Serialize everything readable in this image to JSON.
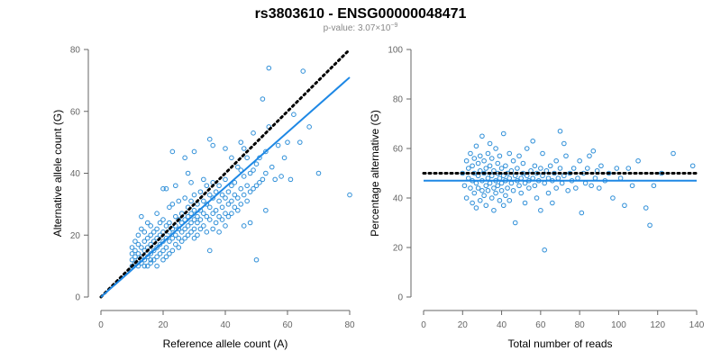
{
  "header": {
    "title": "rs3803610 - ENSG00000048471",
    "pvalue_prefix": "p-value: 3.07×10",
    "pvalue_exponent": "−9"
  },
  "colors": {
    "points": "#2f8fd8",
    "fit_line": "#1e88e5",
    "reference_line": "#000000"
  },
  "chart_data": [
    {
      "type": "scatter",
      "xlabel": "Reference allele count (A)",
      "ylabel": "Alternative allele count (G)",
      "xlim": [
        0,
        80
      ],
      "ylim": [
        0,
        80
      ],
      "xticks": [
        0,
        20,
        40,
        60,
        80
      ],
      "yticks": [
        0,
        20,
        40,
        60,
        80
      ],
      "grid": false,
      "reference_line": {
        "style": "dotted",
        "points": [
          [
            0,
            0
          ],
          [
            80,
            80
          ]
        ]
      },
      "fit_line": {
        "style": "solid",
        "points": [
          [
            0,
            0
          ],
          [
            80,
            71
          ]
        ]
      },
      "points": [
        [
          10,
          10
        ],
        [
          10,
          12
        ],
        [
          10,
          14
        ],
        [
          10,
          16
        ],
        [
          11,
          11
        ],
        [
          11,
          13
        ],
        [
          11,
          15
        ],
        [
          11,
          18
        ],
        [
          12,
          10
        ],
        [
          12,
          12
        ],
        [
          12,
          14
        ],
        [
          12,
          17
        ],
        [
          12,
          20
        ],
        [
          13,
          11
        ],
        [
          13,
          13
        ],
        [
          13,
          16
        ],
        [
          13,
          22
        ],
        [
          13,
          26
        ],
        [
          14,
          10
        ],
        [
          14,
          12
        ],
        [
          14,
          15
        ],
        [
          14,
          18
        ],
        [
          14,
          21
        ],
        [
          15,
          10
        ],
        [
          15,
          13
        ],
        [
          15,
          16
        ],
        [
          15,
          19
        ],
        [
          15,
          24
        ],
        [
          16,
          11
        ],
        [
          16,
          12
        ],
        [
          16,
          14
        ],
        [
          16,
          17
        ],
        [
          16,
          20
        ],
        [
          16,
          23
        ],
        [
          17,
          12
        ],
        [
          17,
          15
        ],
        [
          17,
          18
        ],
        [
          17,
          21
        ],
        [
          18,
          10
        ],
        [
          18,
          13
        ],
        [
          18,
          16
        ],
        [
          18,
          19
        ],
        [
          18,
          22
        ],
        [
          18,
          27
        ],
        [
          19,
          14
        ],
        [
          19,
          17
        ],
        [
          19,
          20
        ],
        [
          19,
          24
        ],
        [
          20,
          12
        ],
        [
          20,
          15
        ],
        [
          20,
          18
        ],
        [
          20,
          21
        ],
        [
          20,
          25
        ],
        [
          20,
          35
        ],
        [
          21,
          13
        ],
        [
          21,
          16
        ],
        [
          21,
          19
        ],
        [
          21,
          23
        ],
        [
          21,
          35
        ],
        [
          22,
          14
        ],
        [
          22,
          18
        ],
        [
          22,
          21
        ],
        [
          22,
          24
        ],
        [
          22,
          29
        ],
        [
          23,
          15
        ],
        [
          23,
          19
        ],
        [
          23,
          22
        ],
        [
          23,
          30
        ],
        [
          23,
          47
        ],
        [
          24,
          17
        ],
        [
          24,
          20
        ],
        [
          24,
          23
        ],
        [
          24,
          26
        ],
        [
          24,
          36
        ],
        [
          25,
          16
        ],
        [
          25,
          19
        ],
        [
          25,
          22
        ],
        [
          25,
          25
        ],
        [
          25,
          31
        ],
        [
          26,
          18
        ],
        [
          26,
          21
        ],
        [
          26,
          24
        ],
        [
          26,
          27
        ],
        [
          27,
          19
        ],
        [
          27,
          22
        ],
        [
          27,
          25
        ],
        [
          27,
          32
        ],
        [
          27,
          45
        ],
        [
          28,
          20
        ],
        [
          28,
          23
        ],
        [
          28,
          26
        ],
        [
          28,
          29
        ],
        [
          28,
          40
        ],
        [
          29,
          21
        ],
        [
          29,
          24
        ],
        [
          29,
          27
        ],
        [
          29,
          31
        ],
        [
          29,
          37
        ],
        [
          30,
          19
        ],
        [
          30,
          22
        ],
        [
          30,
          25
        ],
        [
          30,
          28
        ],
        [
          30,
          33
        ],
        [
          30,
          47
        ],
        [
          31,
          20
        ],
        [
          31,
          24
        ],
        [
          31,
          26
        ],
        [
          31,
          30
        ],
        [
          32,
          22
        ],
        [
          32,
          25
        ],
        [
          32,
          28
        ],
        [
          32,
          34
        ],
        [
          33,
          23
        ],
        [
          33,
          27
        ],
        [
          33,
          31
        ],
        [
          33,
          38
        ],
        [
          34,
          21
        ],
        [
          34,
          26
        ],
        [
          34,
          30
        ],
        [
          34,
          36
        ],
        [
          35,
          15
        ],
        [
          35,
          25
        ],
        [
          35,
          29
        ],
        [
          35,
          33
        ],
        [
          35,
          51
        ],
        [
          36,
          22
        ],
        [
          36,
          27
        ],
        [
          36,
          32
        ],
        [
          36,
          37
        ],
        [
          36,
          49
        ],
        [
          37,
          24
        ],
        [
          37,
          28
        ],
        [
          37,
          34
        ],
        [
          38,
          21
        ],
        [
          38,
          26
        ],
        [
          38,
          31
        ],
        [
          38,
          36
        ],
        [
          39,
          25
        ],
        [
          39,
          29
        ],
        [
          39,
          33
        ],
        [
          40,
          23
        ],
        [
          40,
          27
        ],
        [
          40,
          32
        ],
        [
          40,
          38
        ],
        [
          40,
          48
        ],
        [
          41,
          26
        ],
        [
          41,
          30
        ],
        [
          41,
          34
        ],
        [
          42,
          27
        ],
        [
          42,
          31
        ],
        [
          42,
          36
        ],
        [
          42,
          45
        ],
        [
          43,
          29
        ],
        [
          43,
          33
        ],
        [
          43,
          37
        ],
        [
          44,
          28
        ],
        [
          44,
          32
        ],
        [
          44,
          42
        ],
        [
          45,
          30
        ],
        [
          45,
          35
        ],
        [
          45,
          41
        ],
        [
          45,
          50
        ],
        [
          46,
          23
        ],
        [
          46,
          33
        ],
        [
          46,
          39
        ],
        [
          46,
          48
        ],
        [
          47,
          31
        ],
        [
          47,
          36
        ],
        [
          47,
          45
        ],
        [
          48,
          24
        ],
        [
          48,
          34
        ],
        [
          48,
          40
        ],
        [
          49,
          35
        ],
        [
          49,
          41
        ],
        [
          49,
          53
        ],
        [
          50,
          12
        ],
        [
          50,
          36
        ],
        [
          50,
          43
        ],
        [
          51,
          37
        ],
        [
          51,
          45
        ],
        [
          52,
          38
        ],
        [
          52,
          64
        ],
        [
          53,
          28
        ],
        [
          53,
          40
        ],
        [
          53,
          47
        ],
        [
          54,
          55
        ],
        [
          54,
          74
        ],
        [
          55,
          42
        ],
        [
          56,
          38
        ],
        [
          57,
          49
        ],
        [
          58,
          39
        ],
        [
          59,
          45
        ],
        [
          60,
          50
        ],
        [
          61,
          38
        ],
        [
          62,
          59
        ],
        [
          64,
          50
        ],
        [
          65,
          73
        ],
        [
          67,
          55
        ],
        [
          70,
          40
        ],
        [
          80,
          33
        ]
      ]
    },
    {
      "type": "scatter",
      "xlabel": "Total number of reads",
      "ylabel": "Percentage alternative (G)",
      "xlim": [
        0,
        140
      ],
      "ylim": [
        0,
        100
      ],
      "xticks": [
        0,
        20,
        40,
        60,
        80,
        100,
        120,
        140
      ],
      "yticks": [
        0,
        20,
        40,
        60,
        80,
        100
      ],
      "grid": false,
      "reference_line": {
        "style": "dotted",
        "points": [
          [
            0,
            50
          ],
          [
            140,
            50
          ]
        ]
      },
      "fit_line": {
        "style": "solid",
        "points": [
          [
            0,
            47
          ],
          [
            140,
            47
          ]
        ]
      },
      "points": [
        [
          20,
          50
        ],
        [
          21,
          45
        ],
        [
          22,
          55
        ],
        [
          22,
          40
        ],
        [
          23,
          48
        ],
        [
          23,
          52
        ],
        [
          24,
          44
        ],
        [
          24,
          58
        ],
        [
          25,
          47
        ],
        [
          25,
          53
        ],
        [
          25,
          38
        ],
        [
          26,
          50
        ],
        [
          26,
          42
        ],
        [
          26,
          56
        ],
        [
          27,
          46
        ],
        [
          27,
          61
        ],
        [
          27,
          36
        ],
        [
          28,
          49
        ],
        [
          28,
          44
        ],
        [
          28,
          54
        ],
        [
          29,
          51
        ],
        [
          29,
          39
        ],
        [
          29,
          57
        ],
        [
          30,
          47
        ],
        [
          30,
          43
        ],
        [
          30,
          65
        ],
        [
          31,
          50
        ],
        [
          31,
          55
        ],
        [
          31,
          41
        ],
        [
          32,
          45
        ],
        [
          32,
          52
        ],
        [
          32,
          37
        ],
        [
          33,
          48
        ],
        [
          33,
          58
        ],
        [
          33,
          43
        ],
        [
          34,
          46
        ],
        [
          34,
          53
        ],
        [
          34,
          62
        ],
        [
          35,
          49
        ],
        [
          35,
          40
        ],
        [
          35,
          56
        ],
        [
          36,
          44
        ],
        [
          36,
          51
        ],
        [
          36,
          35
        ],
        [
          37,
          47
        ],
        [
          37,
          60
        ],
        [
          37,
          42
        ],
        [
          38,
          50
        ],
        [
          38,
          45
        ],
        [
          38,
          54
        ],
        [
          39,
          48
        ],
        [
          39,
          39
        ],
        [
          39,
          57
        ],
        [
          40,
          46
        ],
        [
          40,
          52
        ],
        [
          40,
          43
        ],
        [
          41,
          49
        ],
        [
          41,
          66
        ],
        [
          41,
          37
        ],
        [
          42,
          47
        ],
        [
          42,
          53
        ],
        [
          42,
          41
        ],
        [
          43,
          50
        ],
        [
          43,
          44
        ],
        [
          44,
          48
        ],
        [
          44,
          58
        ],
        [
          44,
          39
        ],
        [
          45,
          46
        ],
        [
          45,
          51
        ],
        [
          46,
          43
        ],
        [
          46,
          55
        ],
        [
          47,
          49
        ],
        [
          47,
          30
        ],
        [
          48,
          47
        ],
        [
          48,
          52
        ],
        [
          49,
          45
        ],
        [
          49,
          57
        ],
        [
          50,
          48
        ],
        [
          50,
          42
        ],
        [
          51,
          50
        ],
        [
          51,
          54
        ],
        [
          52,
          46
        ],
        [
          52,
          38
        ],
        [
          53,
          49
        ],
        [
          53,
          60
        ],
        [
          54,
          47
        ],
        [
          54,
          44
        ],
        [
          55,
          51
        ],
        [
          56,
          48
        ],
        [
          56,
          63
        ],
        [
          57,
          45
        ],
        [
          57,
          53
        ],
        [
          58,
          50
        ],
        [
          58,
          40
        ],
        [
          59,
          47
        ],
        [
          60,
          52
        ],
        [
          60,
          35
        ],
        [
          61,
          49
        ],
        [
          61,
          58
        ],
        [
          62,
          46
        ],
        [
          62,
          19
        ],
        [
          63,
          51
        ],
        [
          64,
          48
        ],
        [
          64,
          42
        ],
        [
          65,
          53
        ],
        [
          66,
          47
        ],
        [
          66,
          38
        ],
        [
          67,
          50
        ],
        [
          68,
          55
        ],
        [
          68,
          44
        ],
        [
          69,
          48
        ],
        [
          70,
          52
        ],
        [
          70,
          67
        ],
        [
          71,
          46
        ],
        [
          72,
          49
        ],
        [
          72,
          62
        ],
        [
          73,
          57
        ],
        [
          74,
          43
        ],
        [
          75,
          50
        ],
        [
          76,
          47
        ],
        [
          77,
          52
        ],
        [
          78,
          44
        ],
        [
          79,
          48
        ],
        [
          80,
          55
        ],
        [
          81,
          34
        ],
        [
          82,
          50
        ],
        [
          83,
          46
        ],
        [
          84,
          52
        ],
        [
          85,
          57
        ],
        [
          86,
          45
        ],
        [
          87,
          59
        ],
        [
          88,
          48
        ],
        [
          89,
          51
        ],
        [
          90,
          44
        ],
        [
          91,
          53
        ],
        [
          93,
          47
        ],
        [
          95,
          50
        ],
        [
          97,
          40
        ],
        [
          99,
          52
        ],
        [
          101,
          48
        ],
        [
          103,
          37
        ],
        [
          105,
          52
        ],
        [
          107,
          45
        ],
        [
          110,
          55
        ],
        [
          114,
          36
        ],
        [
          116,
          29
        ],
        [
          118,
          45
        ],
        [
          122,
          50
        ],
        [
          128,
          58
        ],
        [
          138,
          53
        ]
      ]
    }
  ]
}
